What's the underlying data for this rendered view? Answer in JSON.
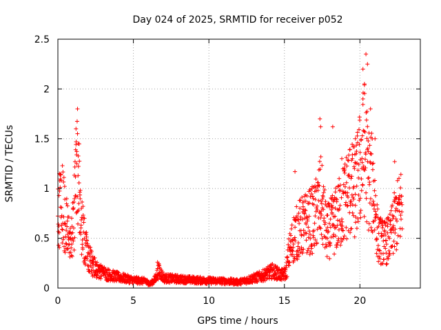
{
  "chart_data": {
    "type": "scatter",
    "title": "Day 024 of 2025, SRMTID for receiver p052",
    "xlabel": "GPS time / hours",
    "ylabel": "SRMTID / TECUs",
    "xlim": [
      0,
      24
    ],
    "ylim": [
      0,
      2.5
    ],
    "xticks": [
      "0",
      "5",
      "10",
      "15",
      "20"
    ],
    "yticks": [
      "0",
      "0.5",
      "1",
      "1.5",
      "2",
      "2.5"
    ],
    "grid": true,
    "marker": "+",
    "color": "#ff0000",
    "series": [
      {
        "name": "SRMTID",
        "profile": [
          [
            0.0,
            0.75
          ],
          [
            0.3,
            0.85
          ],
          [
            0.6,
            0.6
          ],
          [
            0.9,
            0.45
          ],
          [
            1.1,
            0.8
          ],
          [
            1.25,
            1.3
          ],
          [
            1.4,
            1.1
          ],
          [
            1.6,
            0.6
          ],
          [
            1.8,
            0.45
          ],
          [
            2.0,
            0.35
          ],
          [
            2.3,
            0.22
          ],
          [
            2.7,
            0.17
          ],
          [
            3.2,
            0.14
          ],
          [
            4.0,
            0.11
          ],
          [
            5.0,
            0.08
          ],
          [
            5.8,
            0.07
          ],
          [
            6.1,
            0.04
          ],
          [
            6.4,
            0.08
          ],
          [
            6.7,
            0.18
          ],
          [
            7.0,
            0.1
          ],
          [
            8.0,
            0.09
          ],
          [
            9.0,
            0.08
          ],
          [
            10.0,
            0.075
          ],
          [
            11.0,
            0.07
          ],
          [
            12.0,
            0.06
          ],
          [
            12.5,
            0.08
          ],
          [
            13.5,
            0.12
          ],
          [
            14.2,
            0.17
          ],
          [
            14.8,
            0.13
          ],
          [
            15.1,
            0.15
          ],
          [
            15.3,
            0.35
          ],
          [
            15.6,
            0.5
          ],
          [
            16.0,
            0.6
          ],
          [
            16.5,
            0.65
          ],
          [
            17.0,
            0.7
          ],
          [
            17.4,
            0.9
          ],
          [
            17.8,
            0.55
          ],
          [
            18.3,
            0.65
          ],
          [
            18.8,
            0.8
          ],
          [
            19.3,
            1.0
          ],
          [
            19.7,
            0.95
          ],
          [
            20.0,
            1.2
          ],
          [
            20.3,
            1.4
          ],
          [
            20.6,
            1.1
          ],
          [
            20.9,
            1.0
          ],
          [
            21.2,
            0.5
          ],
          [
            21.6,
            0.45
          ],
          [
            22.0,
            0.5
          ],
          [
            22.4,
            0.7
          ],
          [
            22.8,
            0.85
          ]
        ],
        "highlights": [
          [
            0.1,
            1.15
          ],
          [
            1.2,
            1.6
          ],
          [
            1.3,
            1.55
          ],
          [
            1.35,
            1.45
          ],
          [
            1.25,
            1.25
          ],
          [
            6.6,
            0.26
          ],
          [
            15.7,
            1.17
          ],
          [
            17.35,
            1.7
          ],
          [
            17.4,
            1.62
          ],
          [
            18.2,
            1.62
          ],
          [
            18.8,
            1.3
          ],
          [
            19.5,
            1.3
          ],
          [
            19.7,
            1.5
          ],
          [
            20.2,
            2.2
          ],
          [
            20.4,
            2.35
          ],
          [
            20.5,
            2.25
          ],
          [
            20.3,
            2.05
          ],
          [
            20.2,
            1.9
          ],
          [
            20.7,
            1.8
          ],
          [
            21.0,
            1.5
          ],
          [
            22.3,
            1.27
          ]
        ]
      }
    ]
  }
}
